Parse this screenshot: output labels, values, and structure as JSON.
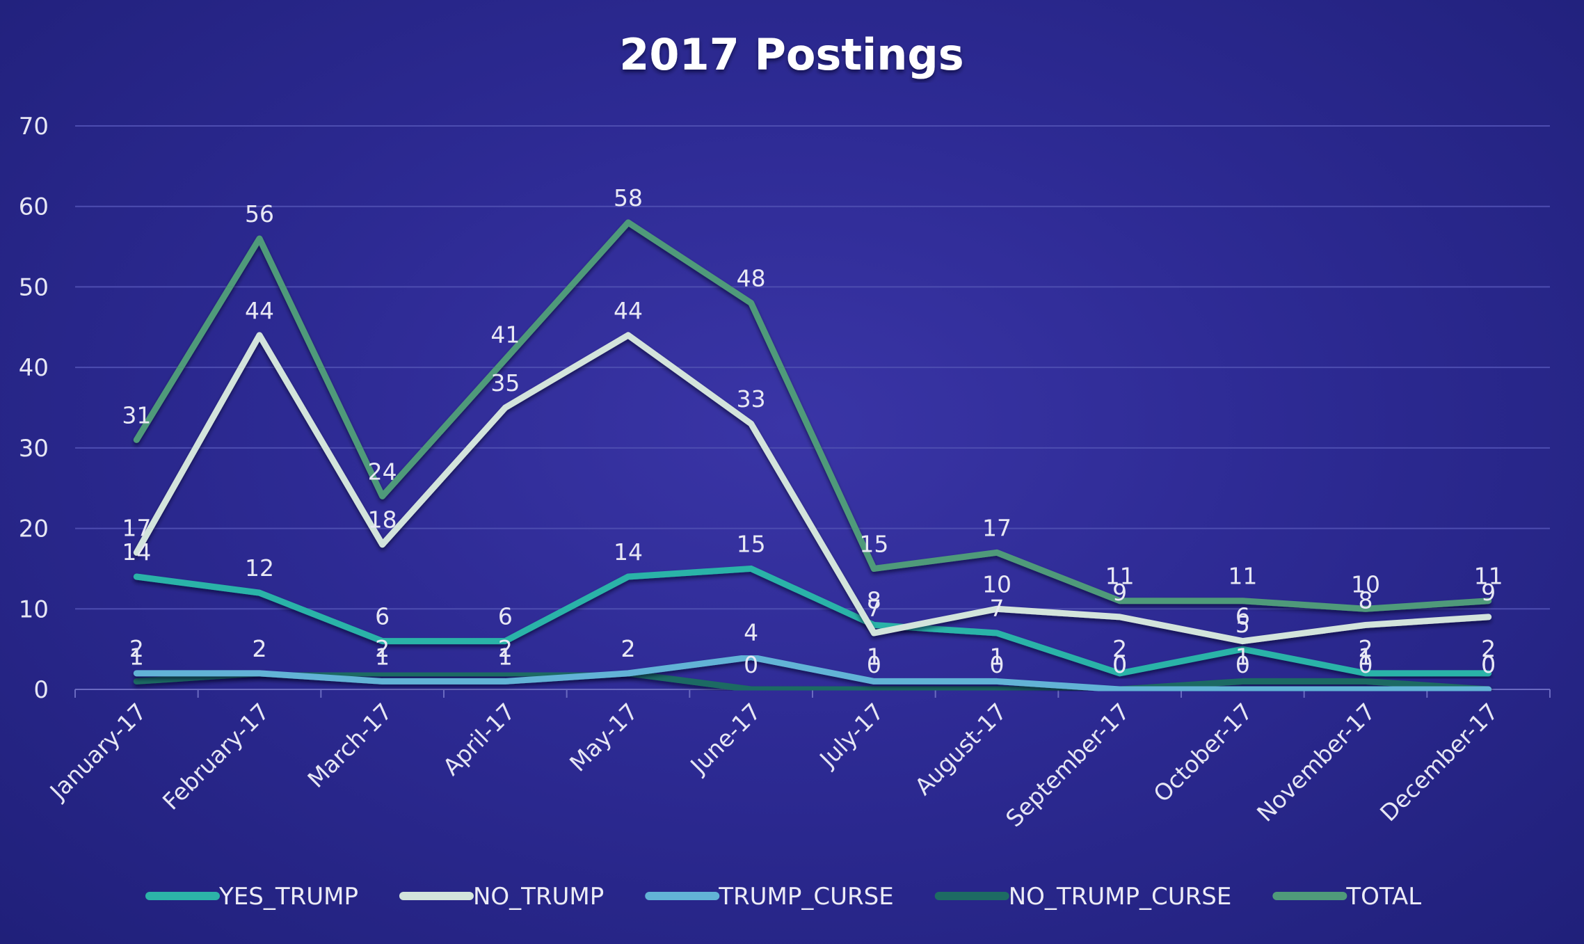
{
  "chart_data": {
    "type": "line",
    "title": "2017 Postings",
    "xlabel": "",
    "ylabel": "",
    "ylim": [
      0,
      70
    ],
    "yticks": [
      0,
      10,
      20,
      30,
      40,
      50,
      60,
      70
    ],
    "grid": true,
    "legend_position": "bottom",
    "categories": [
      "January-17",
      "February-17",
      "March-17",
      "April-17",
      "May-17",
      "June-17",
      "July-17",
      "August-17",
      "September-17",
      "October-17",
      "November-17",
      "December-17"
    ],
    "series": [
      {
        "name": "YES_TRUMP",
        "color": "#2cb3a8",
        "values": [
          14,
          12,
          6,
          6,
          14,
          15,
          8,
          7,
          2,
          5,
          2,
          2
        ]
      },
      {
        "name": "NO_TRUMP",
        "color": "#d3e4dc",
        "values": [
          17,
          44,
          18,
          35,
          44,
          33,
          7,
          10,
          9,
          6,
          8,
          9
        ]
      },
      {
        "name": "TRUMP_CURSE",
        "color": "#62b3d6",
        "values": [
          2,
          2,
          1,
          1,
          2,
          4,
          1,
          1,
          0,
          0,
          0,
          0
        ]
      },
      {
        "name": "NO_TRUMP_CURSE",
        "color": "#1d6b63",
        "values": [
          1,
          2,
          2,
          2,
          2,
          0,
          0,
          0,
          0,
          1,
          1,
          0
        ]
      },
      {
        "name": "TOTAL",
        "color": "#4f9a7a",
        "values": [
          31,
          56,
          24,
          41,
          58,
          48,
          15,
          17,
          11,
          11,
          10,
          11
        ]
      }
    ]
  }
}
